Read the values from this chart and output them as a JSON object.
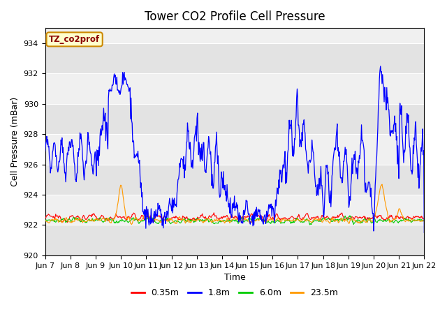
{
  "title": "Tower CO2 Profile Cell Pressure",
  "xlabel": "Time",
  "ylabel": "Cell Pressure (mBar)",
  "ylim": [
    920,
    935
  ],
  "yticks": [
    920,
    922,
    924,
    926,
    928,
    930,
    932,
    934
  ],
  "background_color": "#ffffff",
  "plot_bg_color": "#f0f0f0",
  "grid_color": "#ffffff",
  "legend_label": "TZ_co2prof",
  "legend_box_color": "#ffffcc",
  "legend_box_edge": "#cc8800",
  "series_colors": [
    "#ff0000",
    "#0000ff",
    "#00cc00",
    "#ff9900"
  ],
  "series_labels": [
    "0.35m",
    "1.8m",
    "6.0m",
    "23.5m"
  ],
  "title_fontsize": 12,
  "axis_label_fontsize": 9,
  "tick_fontsize": 8,
  "x_tick_labels": [
    "Jun 7",
    "Jun 8",
    "Jun 9",
    "Jun 10",
    "Jun 11",
    "Jun 12",
    "Jun 13",
    "Jun 14",
    "Jun 15",
    "Jun 16",
    "Jun 17",
    "Jun 18",
    "Jun 19",
    "Jun 20",
    "Jun 21",
    "Jun 22"
  ]
}
